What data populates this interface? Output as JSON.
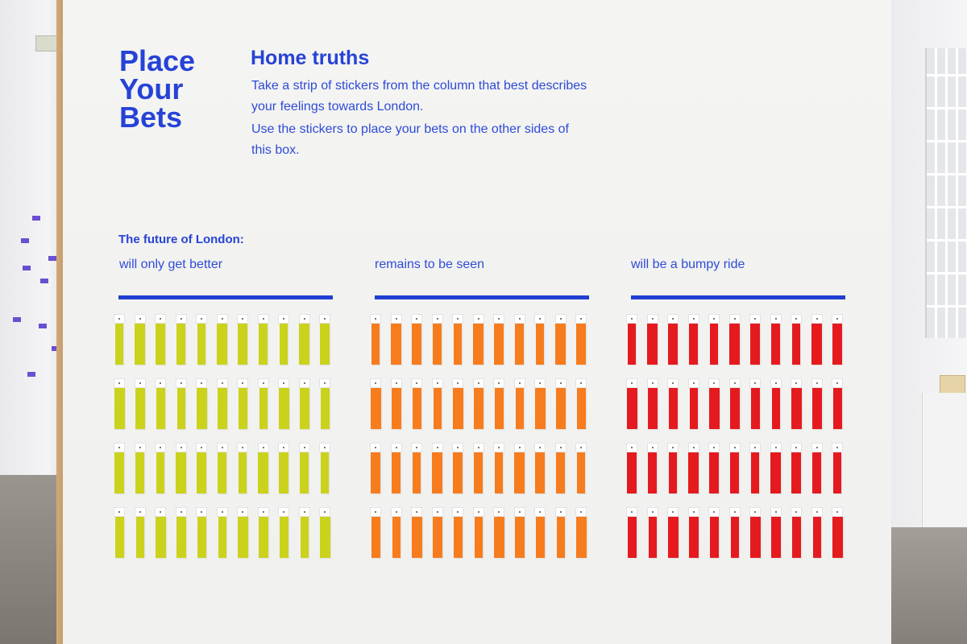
{
  "board": {
    "brand_title_lines": [
      "Place",
      "Your",
      "Bets"
    ],
    "heading": "Home truths",
    "paragraphs": [
      "Take a strip of stickers from the column that best describes your feelings towards London.",
      "Use the stickers to place your bets on the other sides of this box."
    ],
    "future_label": "The future of London:"
  },
  "columns": [
    {
      "label": "will only get better",
      "color": "#cbd21c",
      "rows": 4,
      "strips_per_row": 11
    },
    {
      "label": "remains to be seen",
      "color": "#f77c1e",
      "rows": 4,
      "strips_per_row": 11
    },
    {
      "label": "will be a bumpy ride",
      "color": "#e51a1f",
      "rows": 4,
      "strips_per_row": 11
    }
  ],
  "colors": {
    "text_blue": "#2643d6",
    "rule_blue": "#2140d2"
  }
}
